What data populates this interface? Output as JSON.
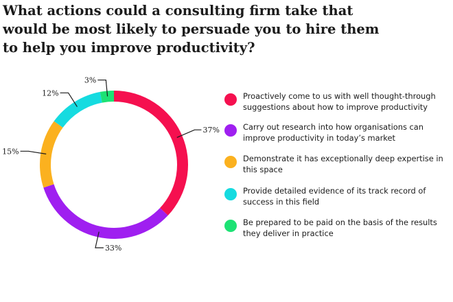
{
  "chart_data": {
    "type": "pie",
    "title": "What actions could a consulting firm take that would be most likely to persuade you to hire them to help you improve productivity?",
    "categories": [
      "Proactively come to us with well thought-through suggestions about how to improve productivity",
      "Carry out research into how organisations can improve productivity in today’s market",
      "Demonstrate it has exceptionally deep expertise in this space",
      "Provide detailed evidence of its track record of success in this field",
      "Be prepared to be paid on the basis of the results they deliver in practice"
    ],
    "values": [
      37,
      33,
      15,
      12,
      3
    ],
    "value_labels": [
      "37%",
      "33%",
      "15%",
      "12%",
      "3%"
    ],
    "colors": [
      "#f5104f",
      "#9f1ff0",
      "#fbb11f",
      "#15dbe0",
      "#1de274"
    ],
    "legend_position": "right",
    "donut": true
  }
}
